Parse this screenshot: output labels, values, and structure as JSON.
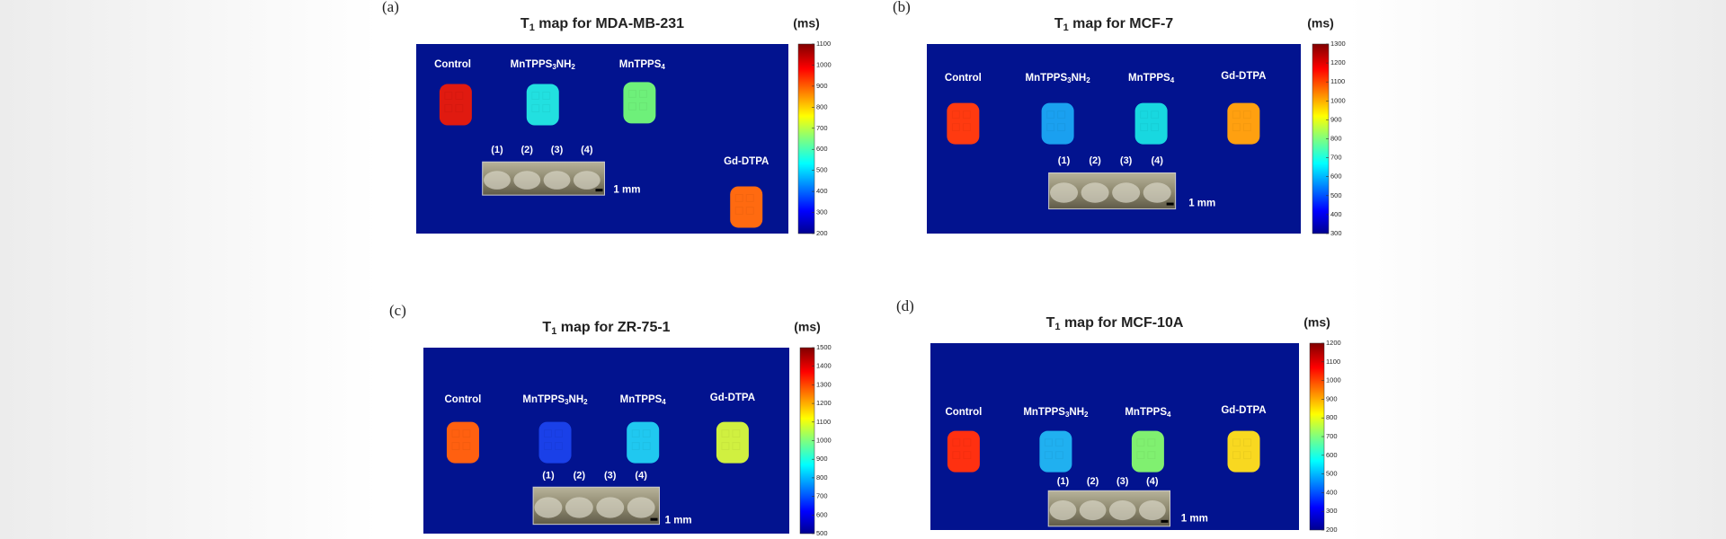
{
  "panels": [
    {
      "label": "(a)",
      "title": [
        "T",
        "1",
        " map  for MDA-MB-231"
      ],
      "unit": "(ms)",
      "samples": [
        [
          "Control"
        ],
        [
          "MnTPPS",
          "3",
          "NH",
          "2"
        ],
        [
          "MnTPPS",
          "4"
        ],
        [
          "Gd-DTPA"
        ]
      ],
      "tube_labels": [
        "(1)",
        "(2)",
        "(3)",
        "(4)"
      ],
      "scale": "1 mm",
      "colorbar_ticks": [
        200,
        300,
        400,
        500,
        600,
        700,
        800,
        900,
        1000,
        1100
      ]
    },
    {
      "label": "(b)",
      "title": [
        "T",
        "1",
        " map  for MCF-7"
      ],
      "unit": "(ms)",
      "samples": [
        [
          "Control"
        ],
        [
          "MnTPPS",
          "3",
          "NH",
          "2"
        ],
        [
          "MnTPPS",
          "4"
        ],
        [
          "Gd-DTPA"
        ]
      ],
      "tube_labels": [
        "(1)",
        "(2)",
        "(3)",
        "(4)"
      ],
      "scale": "1 mm",
      "colorbar_ticks": [
        300,
        400,
        500,
        600,
        700,
        800,
        900,
        1000,
        1100,
        1200,
        1300
      ]
    },
    {
      "label": "(c)",
      "title": [
        "T",
        "1",
        " map  for ZR-75-1"
      ],
      "unit": "(ms)",
      "samples": [
        [
          "Control"
        ],
        [
          "MnTPPS",
          "3",
          "NH",
          "2"
        ],
        [
          "MnTPPS",
          "4"
        ],
        [
          "Gd-DTPA"
        ]
      ],
      "tube_labels": [
        "(1)",
        "(2)",
        "(3)",
        "(4)"
      ],
      "scale": "1 mm",
      "colorbar_ticks": [
        500,
        600,
        700,
        800,
        900,
        1000,
        1100,
        1200,
        1300,
        1400,
        1500
      ]
    },
    {
      "label": "(d)",
      "title": [
        "T",
        "1",
        " map  for MCF-10A"
      ],
      "unit": "(ms)",
      "samples": [
        [
          "Control"
        ],
        [
          "MnTPPS",
          "3",
          "NH",
          "2"
        ],
        [
          "MnTPPS",
          "4"
        ],
        [
          "Gd-DTPA"
        ]
      ],
      "tube_labels": [
        "(1)",
        "(2)",
        "(3)",
        "(4)"
      ],
      "scale": "1 mm",
      "colorbar_ticks": [
        200,
        300,
        400,
        500,
        600,
        700,
        800,
        900,
        1000,
        1100,
        1200
      ]
    }
  ]
}
